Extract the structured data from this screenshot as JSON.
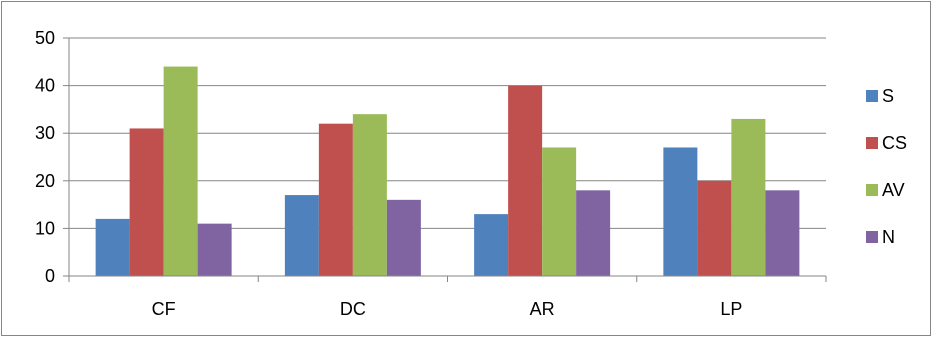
{
  "chart_data": {
    "type": "bar",
    "categories": [
      "CF",
      "DC",
      "AR",
      "LP"
    ],
    "series": [
      {
        "name": "S",
        "color": "#4F81BD",
        "values": [
          12,
          17,
          13,
          27
        ]
      },
      {
        "name": "CS",
        "color": "#C0504D",
        "values": [
          31,
          32,
          40,
          20
        ]
      },
      {
        "name": "AV",
        "color": "#9BBB59",
        "values": [
          44,
          34,
          27,
          33
        ]
      },
      {
        "name": "N",
        "color": "#8064A2",
        "values": [
          11,
          16,
          18,
          18
        ]
      }
    ],
    "ylim": [
      0,
      50
    ],
    "yticks": [
      0,
      10,
      20,
      30,
      40,
      50
    ],
    "grid": true,
    "legend_position": "right"
  }
}
